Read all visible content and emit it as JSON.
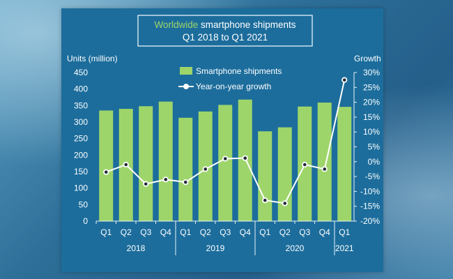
{
  "chart_data": {
    "type": "bar",
    "title": {
      "highlight": "Worldwide",
      "rest": " smartphone shipments",
      "line2": "Q1 2018 to Q1 2021"
    },
    "ylabel_left": "Units (million)",
    "ylabel_right": "Growth",
    "ylim_left": [
      0,
      450
    ],
    "ylim_right": [
      -20,
      30
    ],
    "yticks_left": [
      "0",
      "50",
      "100",
      "150",
      "200",
      "250",
      "300",
      "350",
      "400",
      "450"
    ],
    "yticks_right": [
      "-20%",
      "-15%",
      "-10%",
      "-5%",
      "0%",
      "5%",
      "10%",
      "15%",
      "20%",
      "25%",
      "30%"
    ],
    "categories": [
      "Q1",
      "Q2",
      "Q3",
      "Q4",
      "Q1",
      "Q2",
      "Q3",
      "Q4",
      "Q1",
      "Q2",
      "Q3",
      "Q4",
      "Q1"
    ],
    "years": [
      {
        "label": "2018",
        "span": [
          0,
          3
        ]
      },
      {
        "label": "2019",
        "span": [
          4,
          7
        ]
      },
      {
        "label": "2020",
        "span": [
          8,
          11
        ]
      },
      {
        "label": "2021",
        "span": [
          12,
          12
        ]
      }
    ],
    "series": [
      {
        "name": "Smartphone shipments",
        "kind": "bar",
        "color": "#9ed56a",
        "values": [
          335,
          340,
          348,
          362,
          313,
          332,
          352,
          368,
          272,
          284,
          347,
          359,
          346
        ]
      },
      {
        "name": "Year-on-year growth",
        "kind": "line",
        "color": "#ffffff",
        "values": [
          -3.5,
          -1.0,
          -7.5,
          -6.0,
          -6.9,
          -2.5,
          1.0,
          1.2,
          -13.0,
          -14.0,
          -1.0,
          -2.5,
          27.5
        ]
      }
    ],
    "legend_position": "top-center",
    "grid": false
  }
}
